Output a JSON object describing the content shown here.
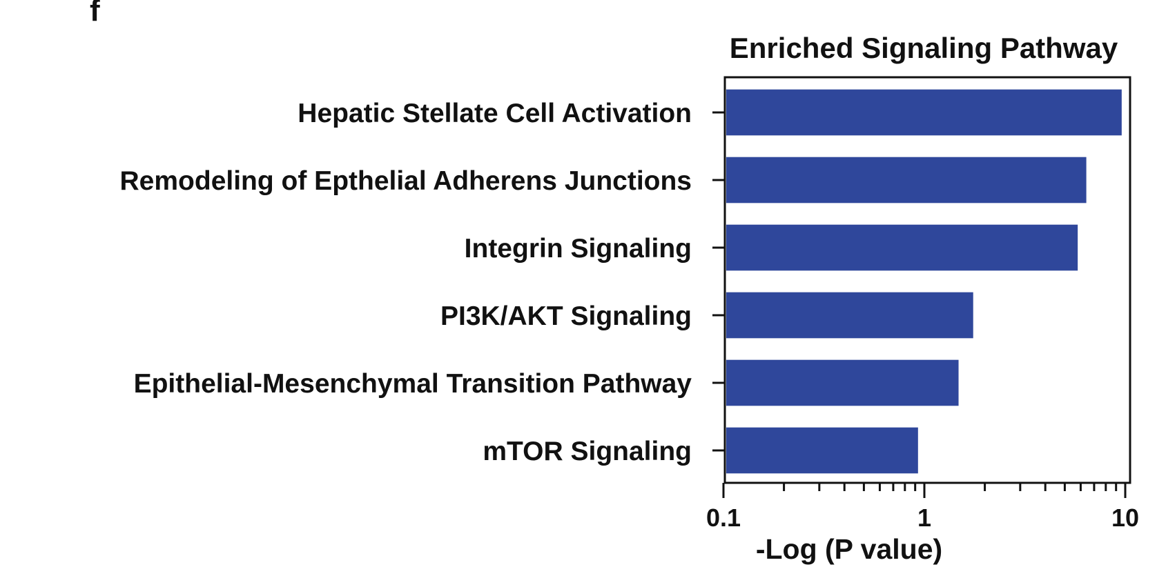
{
  "panel_label": "f",
  "chart_data": {
    "type": "bar",
    "orientation": "horizontal",
    "title": "Enriched Signaling Pathway",
    "xlabel": "-Log (P value)",
    "ylabel": "",
    "x_scale": "log",
    "xlim": [
      0.1,
      10
    ],
    "x_ticks": [
      0.1,
      1,
      10
    ],
    "x_tick_labels": [
      "0.1",
      "1",
      "10"
    ],
    "grid": false,
    "legend": "none",
    "bar_color": "#2f479b",
    "categories": [
      "Hepatic Stellate Cell Activation",
      "Remodeling of Epthelial Adherens Junctions",
      "Integrin Signaling",
      "PI3K/AKT Signaling",
      "Epithelial-Mesenchymal Transition Pathway",
      "mTOR Signaling"
    ],
    "values": [
      9.6,
      6.4,
      5.8,
      1.75,
      1.48,
      0.93
    ]
  }
}
